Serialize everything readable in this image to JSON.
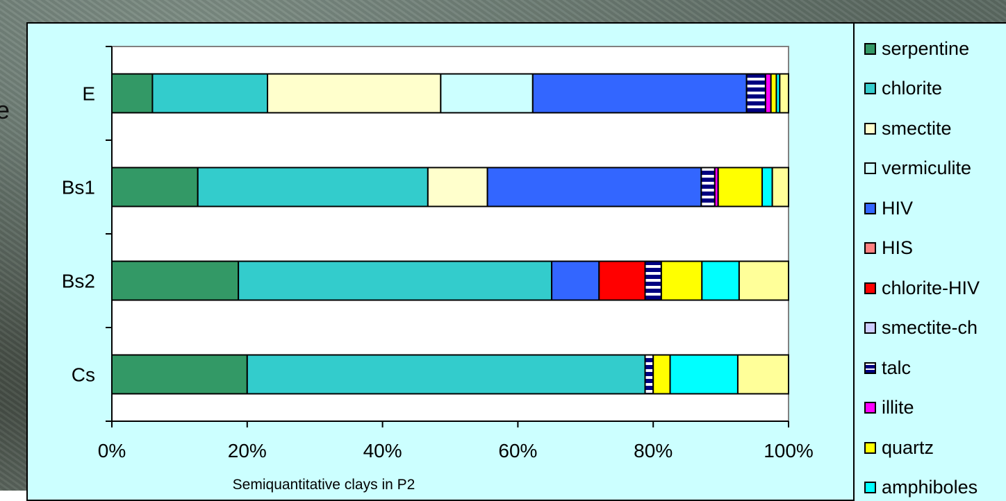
{
  "background_text": "e",
  "chart_data": {
    "type": "bar",
    "orientation": "horizontal",
    "stacked": "percent",
    "xlabel": "Semiquantitative clays in P2",
    "ylabel": "",
    "xlim": [
      0,
      100
    ],
    "x_ticks": [
      "0%",
      "20%",
      "40%",
      "60%",
      "80%",
      "100%"
    ],
    "categories": [
      "E",
      "Bs1",
      "Bs2",
      "Cs"
    ],
    "grid": false,
    "legend_position": "right",
    "series": [
      {
        "name": "serpentine",
        "color": "#339966",
        "values": [
          6,
          12.7,
          18.7,
          20
        ]
      },
      {
        "name": "chlorite",
        "color": "#33cccc",
        "values": [
          17,
          34,
          46.3,
          58.8
        ]
      },
      {
        "name": "smectite",
        "color": "#ffffcc",
        "values": [
          25.6,
          8.8,
          0,
          0
        ]
      },
      {
        "name": "vermiculite",
        "color": "#ccffff",
        "values": [
          13.6,
          0,
          0,
          0
        ]
      },
      {
        "name": "HIV",
        "color": "#3366ff",
        "values": [
          31.6,
          31.6,
          7,
          0
        ]
      },
      {
        "name": "HIS",
        "color": "#ff8080",
        "values": [
          0,
          0,
          0,
          0
        ]
      },
      {
        "name": "chlorite-HIV",
        "color": "#ff0000",
        "values": [
          0,
          0,
          6.8,
          0
        ]
      },
      {
        "name": "smectite-ch",
        "color": "#ccccff",
        "values": [
          0,
          0,
          0,
          0
        ]
      },
      {
        "name": "talc",
        "color": "#000080",
        "pattern": "stripes",
        "values": [
          2.8,
          2,
          2.4,
          1.2
        ]
      },
      {
        "name": "illite",
        "color": "#ff00ff",
        "values": [
          0.8,
          0.5,
          0,
          0
        ]
      },
      {
        "name": "quartz",
        "color": "#ffff00",
        "values": [
          0.8,
          6.5,
          6,
          2.5
        ]
      },
      {
        "name": "amphiboles",
        "color": "#00ffff",
        "values": [
          0.5,
          1.5,
          5.5,
          10
        ]
      },
      {
        "name": "",
        "color": "#ffff99",
        "values": [
          1.3,
          2.4,
          7.3,
          7.5
        ]
      }
    ]
  }
}
